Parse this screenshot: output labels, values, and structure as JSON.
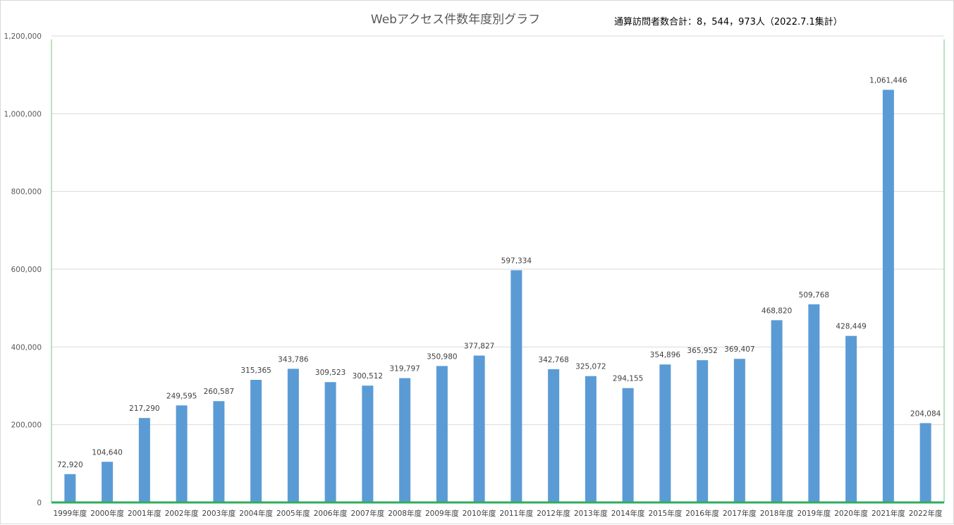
{
  "chart_data": {
    "type": "bar",
    "title": "Webアクセス件数年度別グラフ",
    "annotation": "通算訪問者数合計：8，544，973人（2022.7.1集計）",
    "xlabel": "",
    "ylabel": "",
    "ylim": [
      0,
      1200000
    ],
    "yticks": [
      "0",
      "200,000",
      "400,000",
      "600,000",
      "800,000",
      "1,000,000",
      "1,200,000"
    ],
    "ytick_values": [
      0,
      200000,
      400000,
      600000,
      800000,
      1000000,
      1200000
    ],
    "grid": true,
    "categories": [
      "1999年度",
      "2000年度",
      "2001年度",
      "2002年度",
      "2003年度",
      "2004年度",
      "2005年度",
      "2006年度",
      "2007年度",
      "2008年度",
      "2009年度",
      "2010年度",
      "2011年度",
      "2012年度",
      "2013年度",
      "2014年度",
      "2015年度",
      "2016年度",
      "2017年度",
      "2018年度",
      "2019年度",
      "2020年度",
      "2021年度",
      "2022年度"
    ],
    "values": [
      72920,
      104640,
      217290,
      249595,
      260587,
      315365,
      343786,
      309523,
      300512,
      319797,
      350980,
      377827,
      597334,
      342768,
      325072,
      294155,
      354896,
      365952,
      369407,
      468820,
      509768,
      428449,
      1061446,
      204084
    ],
    "value_labels": [
      "72,920",
      "104,640",
      "217,290",
      "249,595",
      "260,587",
      "315,365",
      "343,786",
      "309,523",
      "300,512",
      "319,797",
      "350,980",
      "377,827",
      "597,334",
      "342,768",
      "325,072",
      "294,155",
      "354,896",
      "365,952",
      "369,407",
      "468,820",
      "509,768",
      "428,449",
      "1,061,446",
      "204,084"
    ],
    "colors": {
      "bar": "#5b9bd5",
      "gridline": "#d9d9d9",
      "axis": "#2eae5e",
      "frame": "#9fd8a6"
    }
  }
}
